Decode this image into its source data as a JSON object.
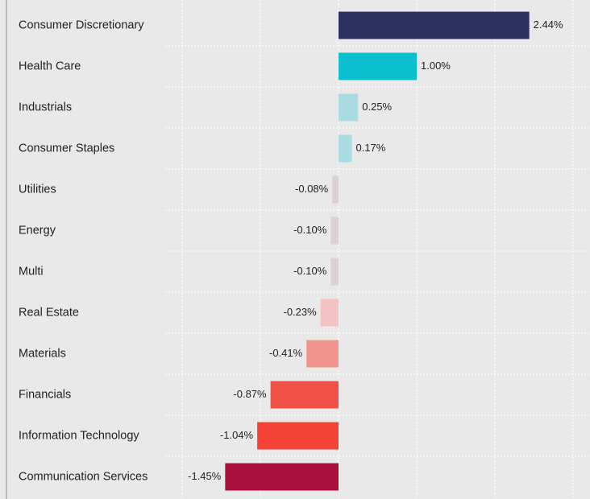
{
  "chart_data": {
    "type": "barh",
    "categories": [
      "Consumer Discretionary",
      "Health Care",
      "Industrials",
      "Consumer Staples",
      "Utilities",
      "Energy",
      "Multi",
      "Real Estate",
      "Materials",
      "Financials",
      "Information Technology",
      "Communication Services"
    ],
    "values": [
      2.44,
      1.0,
      0.25,
      0.17,
      -0.08,
      -0.1,
      -0.1,
      -0.23,
      -0.41,
      -0.87,
      -1.04,
      -1.45
    ],
    "value_labels": [
      "2.44%",
      "1.00%",
      "0.25%",
      "0.17%",
      "-0.08%",
      "-0.10%",
      "-0.10%",
      "-0.23%",
      "-0.41%",
      "-0.87%",
      "-1.04%",
      "-1.45%"
    ],
    "colors": [
      "#2b3262",
      "#0bbfcf",
      "#a8dbe2",
      "#a8dbe2",
      "#dcd0d5",
      "#dcd0d5",
      "#dcd0d5",
      "#f3c3c3",
      "#f2958f",
      "#f15146",
      "#f44336",
      "#a80f3a"
    ],
    "xlim": [
      -2,
      3
    ],
    "xticks": [
      -2,
      -1,
      0,
      1,
      2,
      3
    ],
    "grid": true
  }
}
